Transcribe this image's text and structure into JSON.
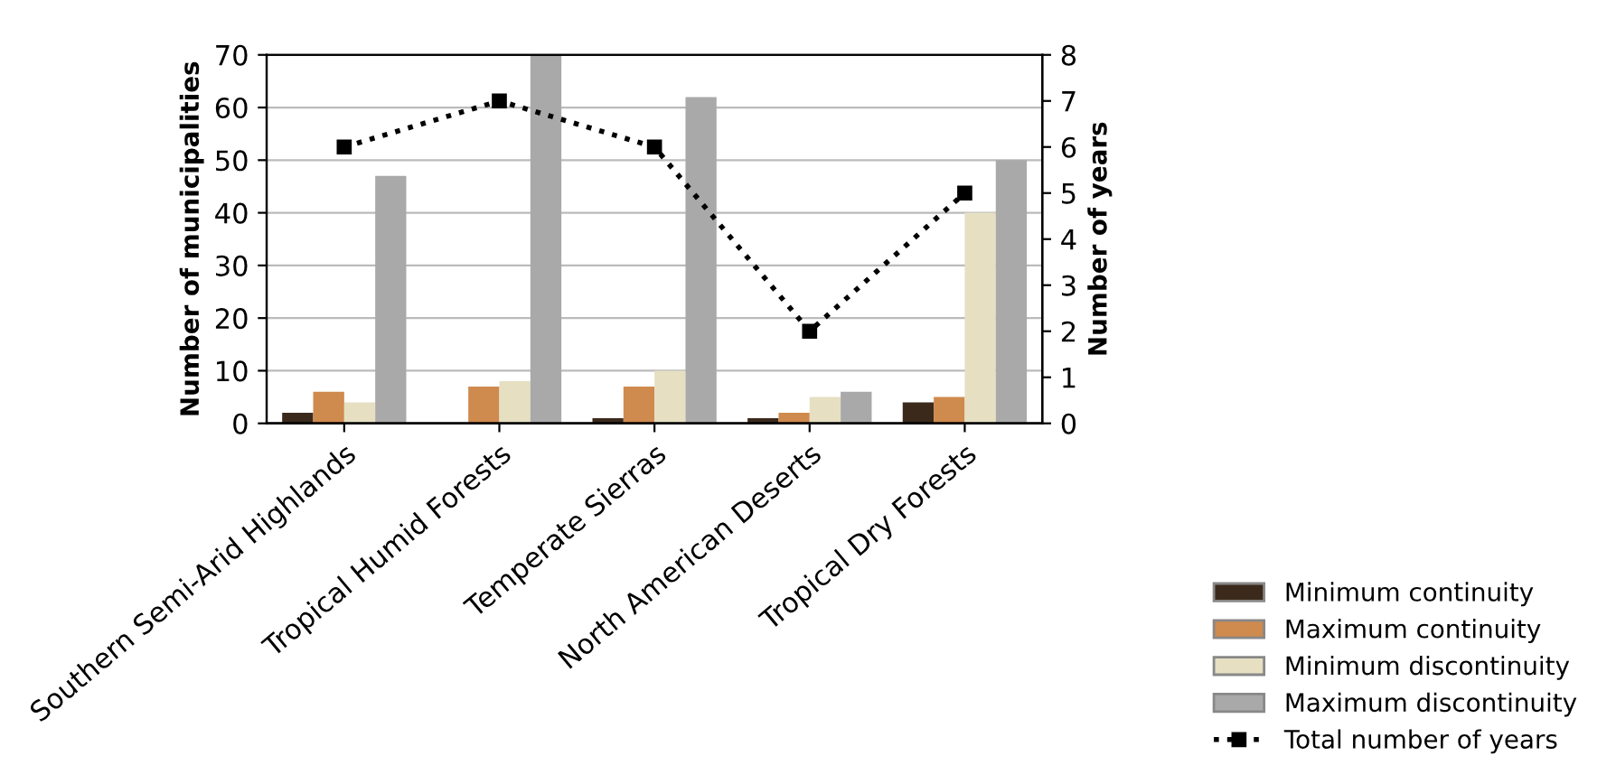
{
  "chart_data": {
    "type": "bar",
    "categories": [
      "Southern Semi-Arid Highlands",
      "Tropical Humid Forests",
      "Temperate Sierras",
      "North American Deserts",
      "Tropical Dry Forests"
    ],
    "series": [
      {
        "name": "Minimum continuity",
        "color": "#3b2a1c",
        "values": [
          2,
          0,
          1,
          1,
          4
        ]
      },
      {
        "name": "Maximum continuity",
        "color": "#cf8a4e",
        "values": [
          6,
          7,
          7,
          2,
          5
        ]
      },
      {
        "name": "Minimum discontinuity",
        "color": "#e6dfc2",
        "values": [
          4,
          8,
          10,
          5,
          40
        ]
      },
      {
        "name": "Maximum discontinuity",
        "color": "#a9a9a9",
        "values": [
          47,
          70,
          62,
          6,
          50
        ]
      },
      {
        "name": "Total number of years",
        "type": "line",
        "axis": "y2",
        "color": "#000000",
        "marker": "square",
        "line_style": "dotted",
        "values": [
          6,
          7,
          6,
          2,
          5
        ]
      }
    ],
    "ylabel": "Number of municipalities",
    "y2label": "Number of years",
    "ylim": [
      0,
      70
    ],
    "yticks": [
      0,
      10,
      20,
      30,
      40,
      50,
      60,
      70
    ],
    "y2lim": [
      0,
      8
    ],
    "y2ticks": [
      0,
      1,
      2,
      3,
      4,
      5,
      6,
      7,
      8
    ],
    "grid": "y",
    "legend": "bottom right"
  }
}
